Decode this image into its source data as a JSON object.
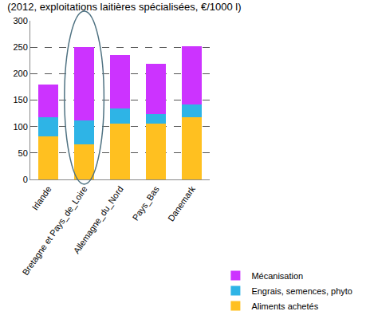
{
  "chart_data": {
    "type": "bar",
    "title": "(2012, exploitations laitières spécialisées, €/1000 l)",
    "categories": [
      "Irlande",
      "Bretagne et Pays_de_Loire",
      "Allemagne_du_Nord",
      "Pays_Bas",
      "Danemark"
    ],
    "series": [
      {
        "name": "Aliments achetés",
        "color": "#ffc020",
        "values": [
          82,
          67,
          106,
          106,
          117
        ]
      },
      {
        "name": "Engrais, semences, phyto",
        "color": "#2eb4e6",
        "values": [
          36,
          44,
          28,
          18,
          24
        ]
      },
      {
        "name": "Mécanisation",
        "color": "#cc33ff",
        "values": [
          62,
          140,
          101,
          94,
          111
        ]
      }
    ],
    "stacked": true,
    "ylim": [
      0,
      300
    ],
    "yticks": [
      0,
      50,
      100,
      150,
      200,
      250,
      300
    ],
    "grid": true,
    "legend": "bottom right"
  }
}
